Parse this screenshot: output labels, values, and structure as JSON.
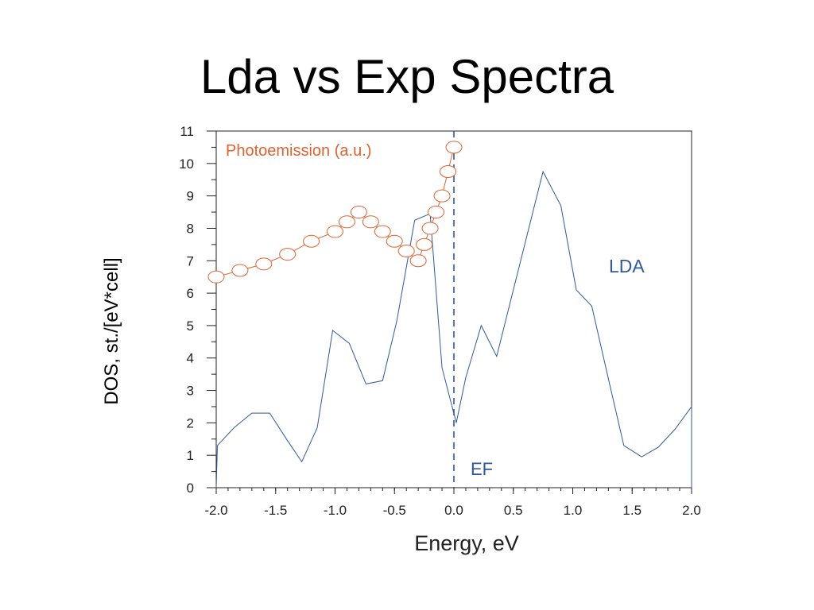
{
  "slide": {
    "title": "Lda vs Exp Spectra"
  },
  "colors": {
    "lda": "#2f5a9a",
    "photoemission": "#e0622f",
    "axis": "#222222",
    "ef_line": "#2f5a9a"
  },
  "chart_data": {
    "type": "line",
    "xlabel": "Energy, eV",
    "ylabel": "DOS, st./[eV*cell]",
    "xlim": [
      -2.0,
      2.0
    ],
    "ylim": [
      0,
      11
    ],
    "x_ticks": [
      "-2.0",
      "-1.5",
      "-1.0",
      "-0.5",
      "0.0",
      "0.5",
      "1.0",
      "1.5",
      "2.0"
    ],
    "y_ticks": [
      "0",
      "1",
      "2",
      "3",
      "4",
      "5",
      "6",
      "7",
      "8",
      "9",
      "10",
      "11"
    ],
    "grid": false,
    "annotations": {
      "ef_label": "EF",
      "lda_label": "LDA",
      "pes_label": "Photoemission (a.u.)"
    },
    "ef_x": 0.0,
    "series": [
      {
        "name": "LDA",
        "x": [
          -2.0,
          -1.99,
          -1.85,
          -1.7,
          -1.55,
          -1.4,
          -1.28,
          -1.15,
          -1.02,
          -0.88,
          -0.74,
          -0.6,
          -0.48,
          -0.33,
          -0.2,
          -0.1,
          0.02,
          0.1,
          0.23,
          0.36,
          0.63,
          0.75,
          0.9,
          1.03,
          1.16,
          1.31,
          1.43,
          1.58,
          1.72,
          1.86,
          2.0,
          2.0
        ],
        "y": [
          0.0,
          1.3,
          1.85,
          2.3,
          2.3,
          1.45,
          0.8,
          1.85,
          4.85,
          4.45,
          3.2,
          3.3,
          5.15,
          8.25,
          8.45,
          3.7,
          2.0,
          3.4,
          5.0,
          4.05,
          8.0,
          9.75,
          8.7,
          6.1,
          5.6,
          3.2,
          1.3,
          0.95,
          1.25,
          1.8,
          2.5,
          0.0
        ]
      },
      {
        "name": "Photoemission (a.u.)",
        "marker": "circle",
        "x": [
          -2.0,
          -1.8,
          -1.6,
          -1.4,
          -1.2,
          -1.0,
          -0.9,
          -0.8,
          -0.7,
          -0.6,
          -0.5,
          -0.4,
          -0.3,
          -0.25,
          -0.2,
          -0.15,
          -0.1,
          -0.05,
          0.0
        ],
        "y": [
          6.5,
          6.7,
          6.9,
          7.2,
          7.6,
          7.9,
          8.2,
          8.5,
          8.2,
          7.9,
          7.6,
          7.3,
          7.0,
          7.5,
          8.0,
          8.5,
          9.0,
          9.75,
          10.5
        ]
      }
    ]
  }
}
